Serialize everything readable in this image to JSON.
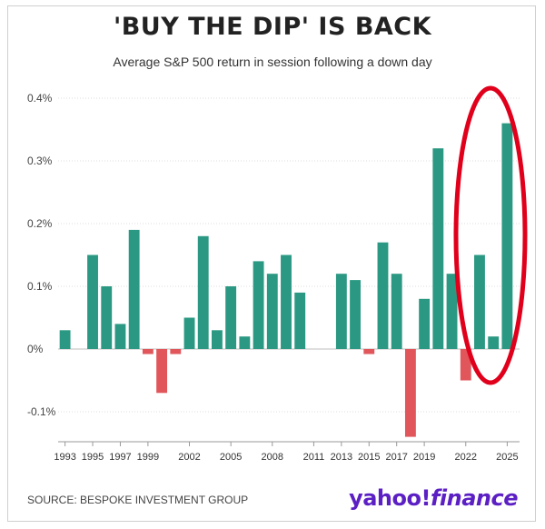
{
  "title": "'BUY THE DIP' IS BACK",
  "subtitle": "Average S&P 500 return in session following a down day",
  "source": "SOURCE: BESPOKE INVESTMENT GROUP",
  "brand": {
    "part1": "yahoo!",
    "part2": "finance"
  },
  "colors": {
    "positive": "#2a9882",
    "negative": "#e0565b",
    "highlight": "#e0001b",
    "brand": "#5b1fc4"
  },
  "chart_data": {
    "type": "bar",
    "ylim": [
      -0.15,
      0.4
    ],
    "yticks": [
      {
        "value": -0.1,
        "label": "-0.1%"
      },
      {
        "value": 0,
        "label": "0%"
      },
      {
        "value": 0.1,
        "label": "0.1%"
      },
      {
        "value": 0.2,
        "label": "0.2%"
      },
      {
        "value": 0.3,
        "label": "0.3%"
      },
      {
        "value": 0.4,
        "label": "0.4%"
      }
    ],
    "categories": [
      "1993",
      "1994",
      "1995",
      "1996",
      "1997",
      "1998",
      "1999",
      "2000",
      "2001",
      "2002",
      "2003",
      "2004",
      "2005",
      "2006",
      "2007",
      "2008",
      "2009",
      "2010",
      "2011",
      "2012",
      "2013",
      "2014",
      "2015",
      "2016",
      "2017",
      "2018",
      "2019",
      "2020",
      "2021",
      "2022",
      "2023",
      "2024",
      "2025"
    ],
    "values": [
      0.03,
      0.0,
      0.15,
      0.1,
      0.04,
      0.19,
      -0.008,
      -0.07,
      -0.008,
      0.05,
      0.18,
      0.03,
      0.1,
      0.02,
      0.14,
      0.12,
      0.15,
      0.09,
      0.001,
      0.001,
      0.12,
      0.11,
      -0.008,
      0.17,
      0.12,
      -0.14,
      0.08,
      0.32,
      0.12,
      -0.05,
      0.15,
      0.02,
      0.36
    ],
    "xtick_labels": [
      "1993",
      "1995",
      "1997",
      "1999",
      "2002",
      "2005",
      "2008",
      "2011",
      "2013",
      "2015",
      "2017",
      "2019",
      "2022",
      "2025"
    ],
    "grid": "horizontal",
    "annotation": "red ellipse around 2023-2025"
  }
}
